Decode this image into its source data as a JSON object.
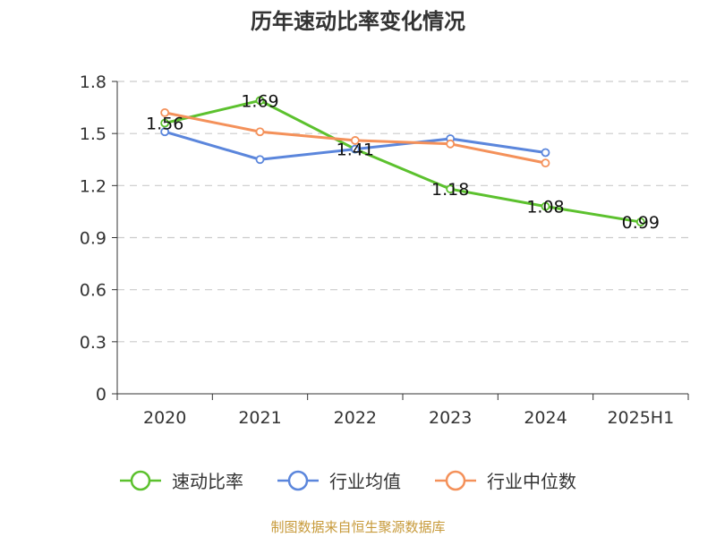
{
  "chart_data": {
    "type": "line",
    "title": "历年速动比率变化情况",
    "categories": [
      "2020",
      "2021",
      "2022",
      "2023",
      "2024",
      "2025H1"
    ],
    "y_ticks": [
      "0",
      "0.3",
      "0.6",
      "0.9",
      "1.2",
      "1.5",
      "1.8"
    ],
    "ylim": [
      0,
      1.8
    ],
    "grid": true,
    "legend_position": "bottom",
    "series": [
      {
        "name": "速动比率",
        "color": "#5cc12e",
        "values": [
          1.56,
          1.69,
          1.41,
          1.18,
          1.08,
          0.99
        ],
        "labels": [
          "1.56",
          "1.69",
          "1.41",
          "1.18",
          "1.08",
          "0.99"
        ],
        "show_labels": true
      },
      {
        "name": "行业均值",
        "color": "#5b86dc",
        "values": [
          1.51,
          1.35,
          1.41,
          1.47,
          1.39,
          null
        ],
        "show_labels": false
      },
      {
        "name": "行业中位数",
        "color": "#f4915a",
        "values": [
          1.62,
          1.51,
          1.46,
          1.44,
          1.33,
          null
        ],
        "show_labels": false
      }
    ],
    "source": "制图数据来自恒生聚源数据库"
  }
}
